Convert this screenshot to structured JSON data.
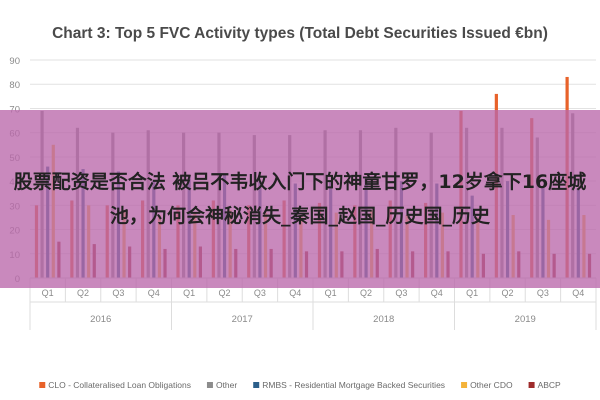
{
  "chart_data": {
    "type": "bar",
    "title": "Chart 3: Top 5 FVC Activity types (Total Debt Securities Issued €bn)",
    "xlabel": "",
    "ylabel": "",
    "ylim": [
      0,
      90
    ],
    "yticks": [
      0,
      10,
      20,
      30,
      40,
      50,
      60,
      70,
      80,
      90
    ],
    "grid": true,
    "legend_position": "bottom",
    "categories": [
      "Q1",
      "Q2",
      "Q3",
      "Q4",
      "Q1",
      "Q2",
      "Q3",
      "Q4",
      "Q1",
      "Q2",
      "Q3",
      "Q4",
      "Q1",
      "Q2",
      "Q3",
      "Q4"
    ],
    "year_groups": [
      {
        "label": "2016",
        "count": 4
      },
      {
        "label": "2017",
        "count": 4
      },
      {
        "label": "2018",
        "count": 4
      },
      {
        "label": "2019",
        "count": 4
      }
    ],
    "series": [
      {
        "name": "CLO - Collateralised Loan Obligations",
        "color": "#e8622a",
        "values": [
          30,
          32,
          30,
          32,
          30,
          32,
          30,
          32,
          31,
          30,
          32,
          31,
          69,
          76,
          66,
          83
        ]
      },
      {
        "name": "Other",
        "color": "#8c8c8c",
        "values": [
          69,
          62,
          60,
          61,
          60,
          60,
          59,
          59,
          61,
          61,
          62,
          60,
          62,
          62,
          58,
          68
        ]
      },
      {
        "name": "RMBS - Residential Mortgage Backed Securities",
        "color": "#2b5f8a",
        "values": [
          46,
          45,
          44,
          40,
          42,
          43,
          40,
          39,
          40,
          41,
          40,
          39,
          34,
          40,
          38,
          37
        ]
      },
      {
        "name": "Other CDO",
        "color": "#f4b33a",
        "values": [
          55,
          30,
          28,
          26,
          27,
          28,
          27,
          26,
          27,
          28,
          26,
          27,
          25,
          26,
          24,
          26
        ]
      },
      {
        "name": "ABCP",
        "color": "#9e2b2b",
        "values": [
          15,
          14,
          13,
          12,
          13,
          12,
          12,
          11,
          11,
          12,
          11,
          11,
          10,
          11,
          10,
          10
        ]
      }
    ]
  },
  "overlay": {
    "text": "股票配资是否合法 被吕不韦收入门下的神童甘罗，12岁拿下16座城池，为何会神秘消失_秦国_赵国_历史国_历史"
  }
}
